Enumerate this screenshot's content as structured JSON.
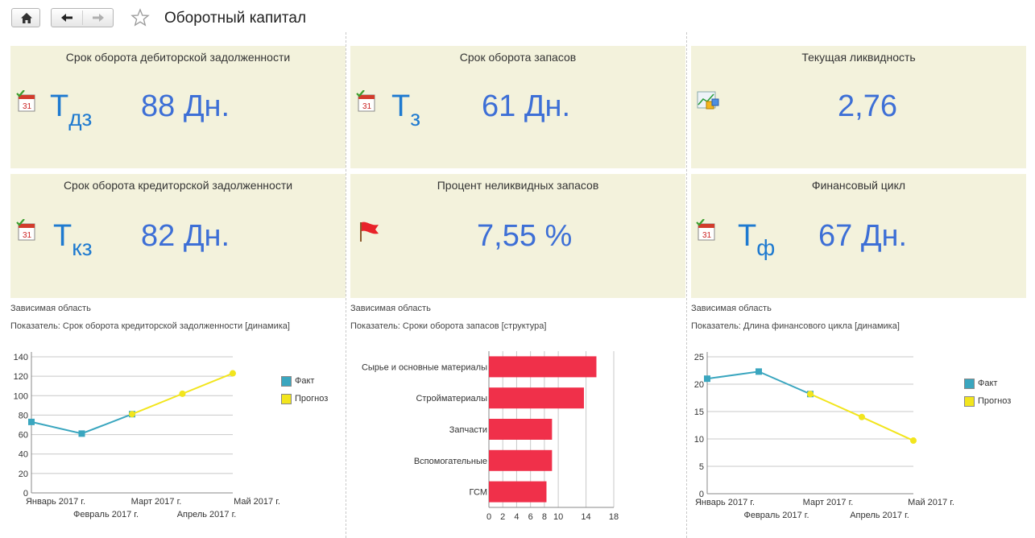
{
  "window": {
    "title": "Оборотный капитал",
    "nav": {
      "home_icon": "home-icon",
      "back_icon": "arrow-left-icon",
      "forward_icon": "arrow-right-icon",
      "favorite_icon": "star-icon"
    }
  },
  "cards": [
    {
      "title": "Срок оборота дебиторской задолженности",
      "symbol": "T",
      "subscript": "дз",
      "value": "88 Дн.",
      "icon": "calendar-check-icon"
    },
    {
      "title": "Срок оборота запасов",
      "symbol": "T",
      "subscript": "з",
      "value": "61 Дн.",
      "icon": "calendar-check-icon"
    },
    {
      "title": "Текущая ликвидность",
      "symbol": "",
      "subscript": "",
      "value": "2,76",
      "icon": "chart-cubes-icon"
    },
    {
      "title": "Срок оборота кредиторской задолженности",
      "symbol": "T",
      "subscript": "кз",
      "value": "82 Дн.",
      "icon": "calendar-check-icon"
    },
    {
      "title": "Процент неликвидных запасов",
      "symbol": "",
      "subscript": "",
      "value": "7,55 %",
      "icon": "red-flag-icon"
    },
    {
      "title": "Финансовый цикл",
      "symbol": "T",
      "subscript": "ф",
      "value": "67 Дн.",
      "icon": "calendar-check-icon"
    }
  ],
  "panels": [
    {
      "label": "Зависимая область",
      "indicator": "Показатель:  Срок оборота кредиторской задолженности [динамика]"
    },
    {
      "label": "Зависимая область",
      "indicator": "Показатель:  Сроки оборота запасов [структура]"
    },
    {
      "label": "Зависимая область",
      "indicator": "Показатель:  Длина финансового цикла [динамика]"
    }
  ],
  "chart_data": [
    {
      "type": "line",
      "x": [
        "Январь 2017 г.",
        "Февраль 2017 г.",
        "Март 2017 г.",
        "Апрель 2017 г.",
        "Май 2017 г."
      ],
      "series": [
        {
          "name": "Факт",
          "color": "#3aa6bf",
          "values": [
            73,
            61,
            81,
            null,
            null
          ]
        },
        {
          "name": "Прогноз",
          "color": "#f2e51d",
          "values": [
            null,
            null,
            81,
            102,
            123
          ]
        }
      ],
      "yticks": [
        0,
        20,
        40,
        60,
        80,
        100,
        120,
        140
      ],
      "ylim": [
        0,
        140
      ],
      "grid": true,
      "legend": "right"
    },
    {
      "type": "bar",
      "orientation": "horizontal",
      "categories": [
        "Сырье и основные материалы",
        "Стройматериалы",
        "Запчасти",
        "Вспомогательные",
        "ГСМ"
      ],
      "values": [
        15.5,
        13.7,
        9.1,
        9.1,
        8.3
      ],
      "color": "#f0304a",
      "xticks": [
        0,
        2,
        4,
        6,
        8,
        10,
        14,
        18
      ],
      "xlim": [
        0,
        18
      ],
      "grid": true
    },
    {
      "type": "line",
      "x": [
        "Январь 2017 г.",
        "Февраль 2017 г.",
        "Март 2017 г.",
        "Апрель 2017 г.",
        "Май 2017 г."
      ],
      "series": [
        {
          "name": "Факт",
          "color": "#3aa6bf",
          "values": [
            21,
            22.3,
            18.2,
            null,
            null
          ]
        },
        {
          "name": "Прогноз",
          "color": "#f2e51d",
          "values": [
            null,
            null,
            18.2,
            14,
            9.7
          ]
        }
      ],
      "yticks": [
        0,
        5,
        10,
        15,
        20,
        25
      ],
      "ylim": [
        0,
        25
      ],
      "grid": true,
      "legend": "right"
    }
  ]
}
